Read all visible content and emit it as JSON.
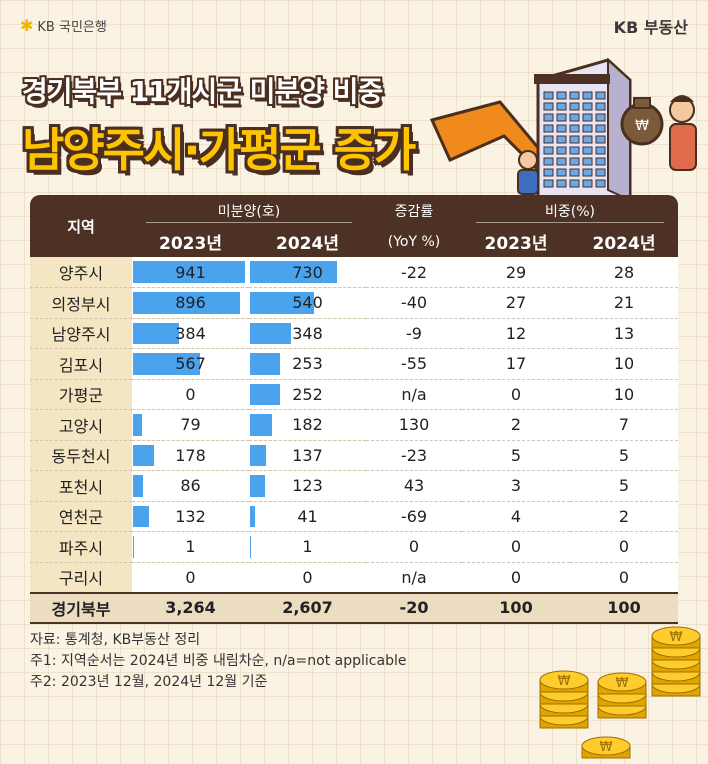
{
  "header": {
    "bank_name": "KB 국민은행",
    "brand": "KB 부동산"
  },
  "title": {
    "line1": "경기북부 11개시군 미분양 비중",
    "line2": "남양주시·가평군 증가"
  },
  "colors": {
    "header_bg": "#4d3124",
    "region_bg": "#f4e6c2",
    "bar": "#4aa3ec",
    "title_yellow": "#ffc400",
    "footer_bg": "#ecdcc0"
  },
  "table": {
    "headers": {
      "region": "지역",
      "unsold_group": "미분양(호)",
      "y2023": "2023년",
      "y2024": "2024년",
      "yoy_line1": "증감률",
      "yoy_line2": "(YoY %)",
      "share_group": "비중(%)"
    },
    "bar_max": 941,
    "rows": [
      {
        "region": "양주시",
        "u2023": "941",
        "u2024": "730",
        "v2023": 941,
        "v2024": 730,
        "yoy": "-22",
        "s2023": "29",
        "s2024": "28"
      },
      {
        "region": "의정부시",
        "u2023": "896",
        "u2024": "540",
        "v2023": 896,
        "v2024": 540,
        "yoy": "-40",
        "s2023": "27",
        "s2024": "21"
      },
      {
        "region": "남양주시",
        "u2023": "384",
        "u2024": "348",
        "v2023": 384,
        "v2024": 348,
        "yoy": "-9",
        "s2023": "12",
        "s2024": "13"
      },
      {
        "region": "김포시",
        "u2023": "567",
        "u2024": "253",
        "v2023": 567,
        "v2024": 253,
        "yoy": "-55",
        "s2023": "17",
        "s2024": "10"
      },
      {
        "region": "가평군",
        "u2023": "0",
        "u2024": "252",
        "v2023": 0,
        "v2024": 252,
        "yoy": "n/a",
        "s2023": "0",
        "s2024": "10"
      },
      {
        "region": "고양시",
        "u2023": "79",
        "u2024": "182",
        "v2023": 79,
        "v2024": 182,
        "yoy": "130",
        "s2023": "2",
        "s2024": "7"
      },
      {
        "region": "동두천시",
        "u2023": "178",
        "u2024": "137",
        "v2023": 178,
        "v2024": 137,
        "yoy": "-23",
        "s2023": "5",
        "s2024": "5"
      },
      {
        "region": "포천시",
        "u2023": "86",
        "u2024": "123",
        "v2023": 86,
        "v2024": 123,
        "yoy": "43",
        "s2023": "3",
        "s2024": "5"
      },
      {
        "region": "연천군",
        "u2023": "132",
        "u2024": "41",
        "v2023": 132,
        "v2024": 41,
        "yoy": "-69",
        "s2023": "4",
        "s2024": "2"
      },
      {
        "region": "파주시",
        "u2023": "1",
        "u2024": "1",
        "v2023": 1,
        "v2024": 1,
        "yoy": "0",
        "s2023": "0",
        "s2024": "0"
      },
      {
        "region": "구리시",
        "u2023": "0",
        "u2024": "0",
        "v2023": 0,
        "v2024": 0,
        "yoy": "n/a",
        "s2023": "0",
        "s2024": "0"
      }
    ],
    "total": {
      "region": "경기북부",
      "u2023": "3,264",
      "u2024": "2,607",
      "yoy": "-20",
      "s2023": "100",
      "s2024": "100"
    }
  },
  "notes": {
    "source": "자료: 통계청, KB부동산 정리",
    "note1": "주1: 지역순서는 2024년 비중 내림차순, n/a=not applicable",
    "note2": "주2: 2023년 12월, 2024년 12월 기준"
  },
  "icons": {
    "coin_symbol": "₩"
  }
}
